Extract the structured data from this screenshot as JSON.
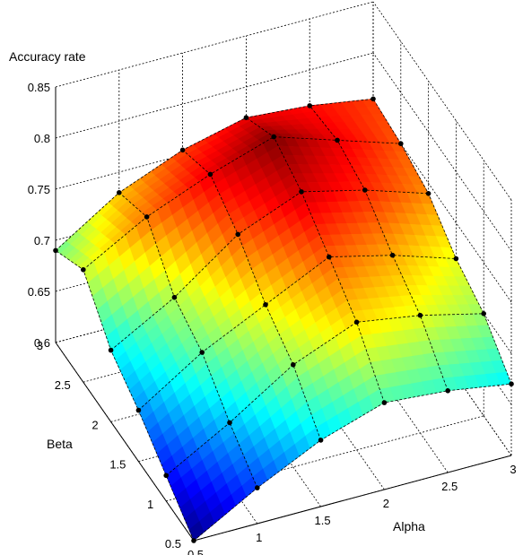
{
  "chart_data": {
    "type": "surface",
    "xlabel": "Alpha",
    "ylabel": "Beta",
    "zlabel": "Accuracy rate",
    "x": [
      0.5,
      1.0,
      1.5,
      2.0,
      2.5,
      3.0
    ],
    "y": [
      0.5,
      1.0,
      1.5,
      2.0,
      2.5,
      3.0
    ],
    "x_ticks": [
      "0.5",
      "1",
      "1.5",
      "2",
      "2.5",
      "3"
    ],
    "y_ticks": [
      "0.5",
      "1",
      "1.5",
      "2",
      "2.5",
      "3"
    ],
    "z_ticks": [
      "0.6",
      "0.65",
      "0.7",
      "0.75",
      "0.8",
      "0.85"
    ],
    "xlim": [
      0.5,
      3.0
    ],
    "ylim": [
      0.5,
      3.0
    ],
    "zlim": [
      0.6,
      0.85
    ],
    "grid": true,
    "colormap": "jet",
    "z_by_beta_rows": [
      [
        0.6,
        0.635,
        0.665,
        0.685,
        0.68,
        0.67
      ],
      [
        0.625,
        0.66,
        0.7,
        0.725,
        0.715,
        0.7
      ],
      [
        0.65,
        0.69,
        0.72,
        0.75,
        0.735,
        0.715
      ],
      [
        0.67,
        0.705,
        0.75,
        0.775,
        0.76,
        0.74
      ],
      [
        0.71,
        0.745,
        0.77,
        0.79,
        0.77,
        0.75
      ],
      [
        0.69,
        0.73,
        0.755,
        0.77,
        0.765,
        0.755
      ]
    ]
  }
}
